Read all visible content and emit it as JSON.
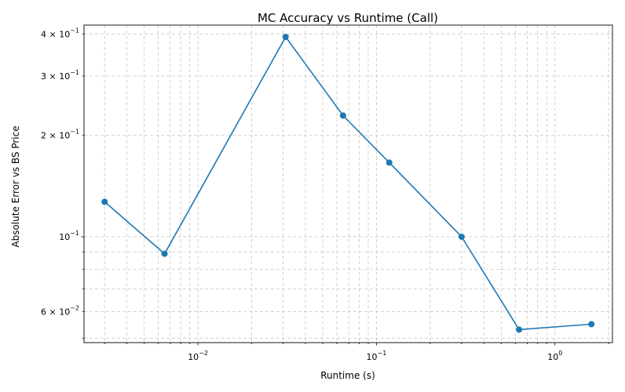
{
  "chart_data": {
    "type": "line",
    "title": "MC Accuracy vs Runtime (Call)",
    "xlabel": "Runtime (s)",
    "ylabel": "Absolute Error vs BS Price",
    "xscale": "log",
    "yscale": "log",
    "xlim": [
      0.0023,
      2.1
    ],
    "ylim": [
      0.0485,
      0.425
    ],
    "grid": true,
    "x_major_ticks": [
      0.01,
      0.1,
      1
    ],
    "x_major_labels": [
      [
        "10",
        "−2"
      ],
      [
        "10",
        "−1"
      ],
      [
        "10",
        "0"
      ]
    ],
    "y_major_ticks": [
      0.1
    ],
    "y_major_labels": [
      [
        "10",
        "−1"
      ]
    ],
    "y_minor_labeled_ticks": [
      0.06,
      0.2,
      0.3,
      0.4
    ],
    "y_minor_labels": [
      [
        "6 × 10",
        "−2"
      ],
      [
        "2 × 10",
        "−1"
      ],
      [
        "3 × 10",
        "−1"
      ],
      [
        "4 × 10",
        "−1"
      ]
    ],
    "series": [
      {
        "color": "#1f77b4",
        "marker": "circle",
        "x": [
          0.003,
          0.0065,
          0.031,
          0.065,
          0.118,
          0.3,
          0.63,
          1.6
        ],
        "y": [
          0.127,
          0.089,
          0.392,
          0.229,
          0.166,
          0.1,
          0.053,
          0.055
        ]
      }
    ]
  }
}
